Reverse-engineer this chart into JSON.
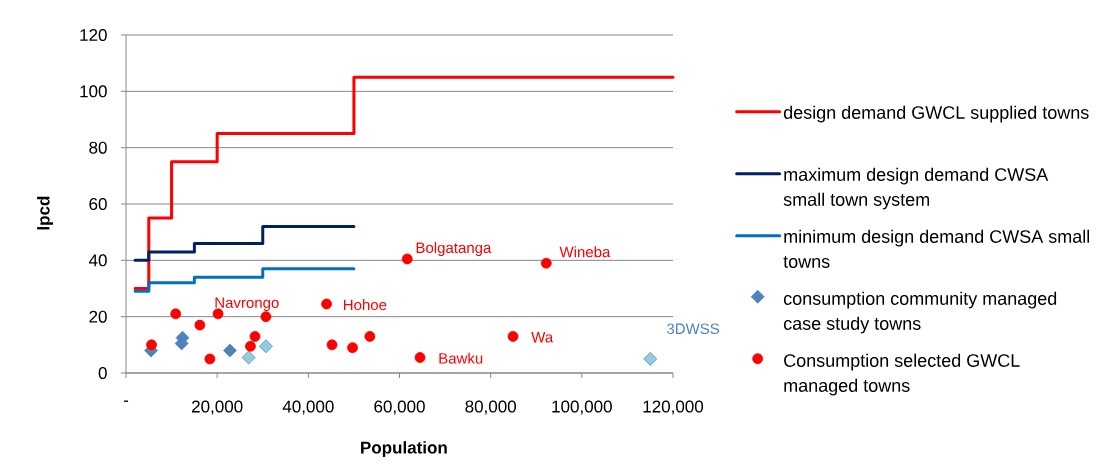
{
  "chart_data": {
    "type": "step",
    "xlabel": "Population",
    "ylabel": "lpcd",
    "xlim": [
      0,
      120000
    ],
    "ylim": [
      0,
      120
    ],
    "xticks": [
      {
        "value": 0,
        "label": "-"
      },
      {
        "value": 20000,
        "label": "20,000"
      },
      {
        "value": 40000,
        "label": "40,000"
      },
      {
        "value": 60000,
        "label": "60,000"
      },
      {
        "value": 80000,
        "label": "80,000"
      },
      {
        "value": 100000,
        "label": "100,000"
      },
      {
        "value": 120000,
        "label": "120,000"
      }
    ],
    "yticks": [
      0,
      20,
      40,
      60,
      80,
      100,
      120
    ],
    "grid": "y",
    "legend": "right",
    "series": [
      {
        "name": "design demand GWCL supplied towns",
        "color": "#ff0000",
        "x": [
          2000,
          5000,
          10000,
          20000,
          50000,
          120000
        ],
        "values": [
          30,
          55,
          75,
          85,
          105,
          105
        ]
      },
      {
        "name": "maximum design demand CWSA small town system",
        "color": "#002060",
        "x": [
          2000,
          5000,
          15000,
          30000,
          50000
        ],
        "values": [
          40,
          43,
          46,
          52,
          52
        ]
      },
      {
        "name": "minimum design demand CWSA small towns",
        "color": "#0070c0",
        "x": [
          2000,
          5000,
          15000,
          30000,
          50000
        ],
        "values": [
          29,
          32,
          34,
          37,
          37
        ]
      },
      {
        "name": "consumption community managed case study towns",
        "type": "scatter",
        "marker": "diamond",
        "color": "#4f81bd",
        "colors": [
          "#4f81bd",
          "#4f81bd",
          "#4f81bd",
          "#4f81bd",
          "#93cddd",
          "#93cddd",
          "#93cddd"
        ],
        "x": [
          5500,
          12200,
          12400,
          22800,
          26900,
          30700,
          115000
        ],
        "values": [
          8,
          10.5,
          12.5,
          8,
          5.5,
          9.5,
          5
        ]
      },
      {
        "name": "Consumption selected GWCL managed towns",
        "type": "scatter",
        "marker": "circle",
        "color": "#ff0000",
        "x": [
          5600,
          10900,
          16200,
          18400,
          20200,
          27300,
          28300,
          30700,
          44000,
          45200,
          49700,
          53500,
          61700,
          64500,
          84900,
          92200
        ],
        "values": [
          10,
          21,
          17,
          5,
          21,
          9.5,
          13,
          20,
          24.5,
          10,
          9,
          13,
          40.5,
          5.5,
          13,
          39
        ]
      }
    ],
    "annotations": [
      {
        "text": "Navrongo",
        "x": 20200,
        "y": 21
      },
      {
        "text": "Hohoe",
        "x": 44000,
        "y": 24.5
      },
      {
        "text": "Bolgatanga",
        "x": 61700,
        "y": 40.5
      },
      {
        "text": "Bawku",
        "x": 64500,
        "y": 5.5
      },
      {
        "text": "Wa",
        "x": 84900,
        "y": 13
      },
      {
        "text": "Wineba",
        "x": 92200,
        "y": 39
      },
      {
        "text": "3DWSS",
        "x": 115000,
        "y": 5
      }
    ]
  }
}
